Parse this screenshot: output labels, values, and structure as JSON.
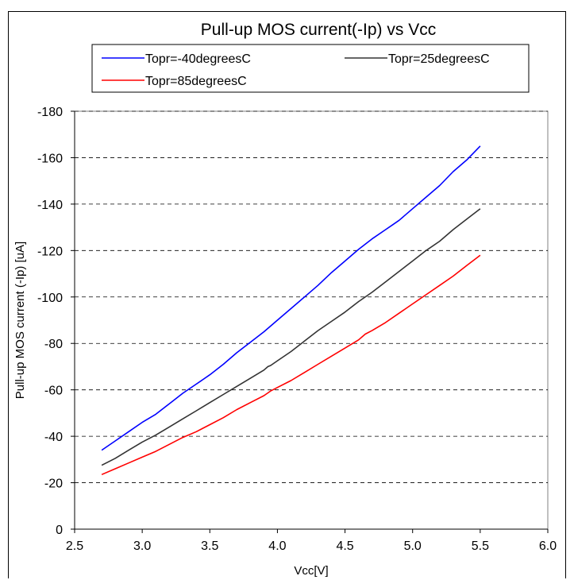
{
  "chart_data": {
    "type": "line",
    "title": "Pull-up MOS current(-Ip) vs Vcc",
    "xlabel": "Vcc[V]",
    "ylabel": "Pull-up MOS current (-Ip) [uA]",
    "xlim": [
      2.5,
      6.0
    ],
    "ylim": [
      0,
      180
    ],
    "x_ticks": [
      "2.5",
      "3.0",
      "3.5",
      "4.0",
      "4.5",
      "5.0",
      "5.5",
      "6.0"
    ],
    "y_ticks": [
      "0",
      "-20",
      "-40",
      "-60",
      "-80",
      "-100",
      "-120",
      "-140",
      "-160",
      "-180"
    ],
    "grid": "horizontal dashed",
    "legend_position": "top",
    "series": [
      {
        "name": "Topr=-40degreesC",
        "color": "#0000ff",
        "x": [
          2.7,
          2.8,
          2.9,
          3.0,
          3.1,
          3.2,
          3.3,
          3.4,
          3.5,
          3.6,
          3.7,
          3.8,
          3.9,
          4.0,
          4.1,
          4.2,
          4.3,
          4.4,
          4.5,
          4.6,
          4.7,
          4.8,
          4.85,
          4.9,
          5.0,
          5.1,
          5.2,
          5.3,
          5.4,
          5.5
        ],
        "y": [
          34,
          38,
          42,
          46,
          49.5,
          54,
          58.5,
          62.5,
          66.5,
          71,
          76,
          80.5,
          85,
          90,
          95,
          100,
          105,
          110.5,
          115.5,
          120.5,
          125,
          129,
          131,
          133,
          138,
          143,
          148,
          154,
          159,
          165
        ]
      },
      {
        "name": "Topr=25degreesC",
        "color": "#333333",
        "x": [
          2.7,
          2.8,
          2.9,
          3.0,
          3.1,
          3.2,
          3.3,
          3.4,
          3.5,
          3.6,
          3.7,
          3.8,
          3.9,
          3.93,
          3.95,
          4.0,
          4.1,
          4.2,
          4.3,
          4.4,
          4.5,
          4.6,
          4.7,
          4.8,
          4.9,
          5.0,
          5.1,
          5.2,
          5.3,
          5.4,
          5.5
        ],
        "y": [
          27.5,
          30.5,
          34,
          37.5,
          40.5,
          44,
          47.5,
          51,
          54.5,
          58,
          61.5,
          65,
          68.5,
          70,
          70.5,
          72.5,
          76.5,
          81,
          85.5,
          89.5,
          93.5,
          98,
          102,
          106.5,
          111,
          115.5,
          120,
          124,
          129,
          133.5,
          138
        ]
      },
      {
        "name": "Topr=85degreesC",
        "color": "#ff0000",
        "x": [
          2.7,
          2.8,
          2.9,
          3.0,
          3.1,
          3.2,
          3.3,
          3.4,
          3.5,
          3.6,
          3.7,
          3.8,
          3.9,
          3.95,
          4.0,
          4.1,
          4.2,
          4.3,
          4.4,
          4.5,
          4.6,
          4.65,
          4.7,
          4.8,
          4.9,
          5.0,
          5.1,
          5.2,
          5.3,
          5.4,
          5.5
        ],
        "y": [
          23.5,
          26,
          28.5,
          31,
          33.5,
          36.5,
          39.5,
          42,
          45,
          48,
          51.5,
          54.5,
          57.5,
          59.5,
          61,
          64,
          67.5,
          71,
          74.5,
          78,
          81.5,
          84,
          85.5,
          89,
          93,
          97,
          101,
          105,
          109,
          113.5,
          118
        ]
      }
    ]
  }
}
